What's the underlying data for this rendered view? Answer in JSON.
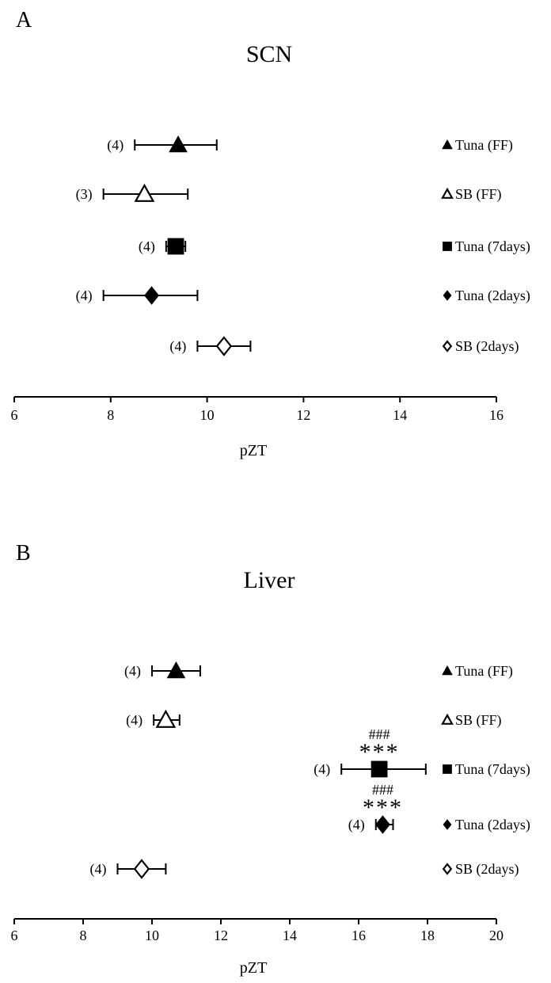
{
  "chart_data": [
    {
      "type": "scatter",
      "panel_label": "A",
      "title": "SCN",
      "xlabel": "pZT",
      "xlim": [
        6,
        16
      ],
      "xticks": [
        6,
        8,
        10,
        12,
        14,
        16
      ],
      "legend_placement": "right",
      "series": [
        {
          "name": "Tuna (FF)",
          "marker": "triangle",
          "filled": true,
          "x": 9.4,
          "err_low": 8.5,
          "err_high": 10.2,
          "n_label": "(4)",
          "annotations": []
        },
        {
          "name": "SB (FF)",
          "marker": "triangle",
          "filled": false,
          "x": 8.7,
          "err_low": 7.85,
          "err_high": 9.6,
          "n_label": "(3)",
          "annotations": []
        },
        {
          "name": "Tuna (7days)",
          "marker": "square",
          "filled": true,
          "x": 9.35,
          "err_low": 9.15,
          "err_high": 9.55,
          "n_label": "(4)",
          "annotations": []
        },
        {
          "name": "Tuna (2days)",
          "marker": "diamond",
          "filled": true,
          "x": 8.85,
          "err_low": 7.85,
          "err_high": 9.8,
          "n_label": "(4)",
          "annotations": []
        },
        {
          "name": "SB (2days)",
          "marker": "diamond",
          "filled": false,
          "x": 10.35,
          "err_low": 9.8,
          "err_high": 10.9,
          "n_label": "(4)",
          "annotations": []
        }
      ]
    },
    {
      "type": "scatter",
      "panel_label": "B",
      "title": "Liver",
      "xlabel": "pZT",
      "xlim": [
        6,
        20
      ],
      "xticks": [
        6,
        8,
        10,
        12,
        14,
        16,
        18,
        20
      ],
      "legend_placement": "right",
      "series": [
        {
          "name": "Tuna (FF)",
          "marker": "triangle",
          "filled": true,
          "x": 10.7,
          "err_low": 10.0,
          "err_high": 11.4,
          "n_label": "(4)",
          "annotations": []
        },
        {
          "name": "SB (FF)",
          "marker": "triangle",
          "filled": false,
          "x": 10.4,
          "err_low": 10.05,
          "err_high": 10.8,
          "n_label": "(4)",
          "annotations": []
        },
        {
          "name": "Tuna (7days)",
          "marker": "square",
          "filled": true,
          "x": 16.6,
          "err_low": 15.5,
          "err_high": 17.95,
          "n_label": "(4)",
          "annotations": [
            "###",
            "***"
          ]
        },
        {
          "name": "Tuna (2days)",
          "marker": "diamond",
          "filled": true,
          "x": 16.7,
          "err_low": 16.5,
          "err_high": 17.0,
          "n_label": "(4)",
          "annotations": [
            "###",
            "***"
          ]
        },
        {
          "name": "SB (2days)",
          "marker": "diamond",
          "filled": false,
          "x": 9.7,
          "err_low": 9.0,
          "err_high": 10.4,
          "n_label": "(4)",
          "annotations": []
        }
      ]
    }
  ]
}
